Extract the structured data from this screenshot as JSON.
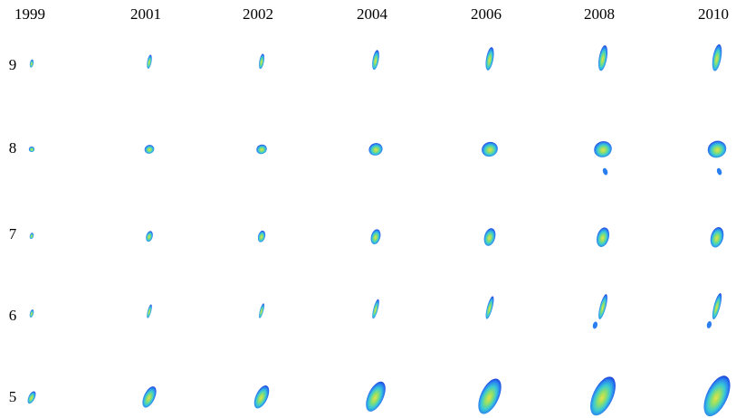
{
  "columns": [
    "1999",
    "2001",
    "2002",
    "2004",
    "2006",
    "2008",
    "2010"
  ],
  "rows": [
    {
      "label": "9"
    },
    {
      "label": "8"
    },
    {
      "label": "7"
    },
    {
      "label": "6"
    },
    {
      "label": "5"
    }
  ]
}
